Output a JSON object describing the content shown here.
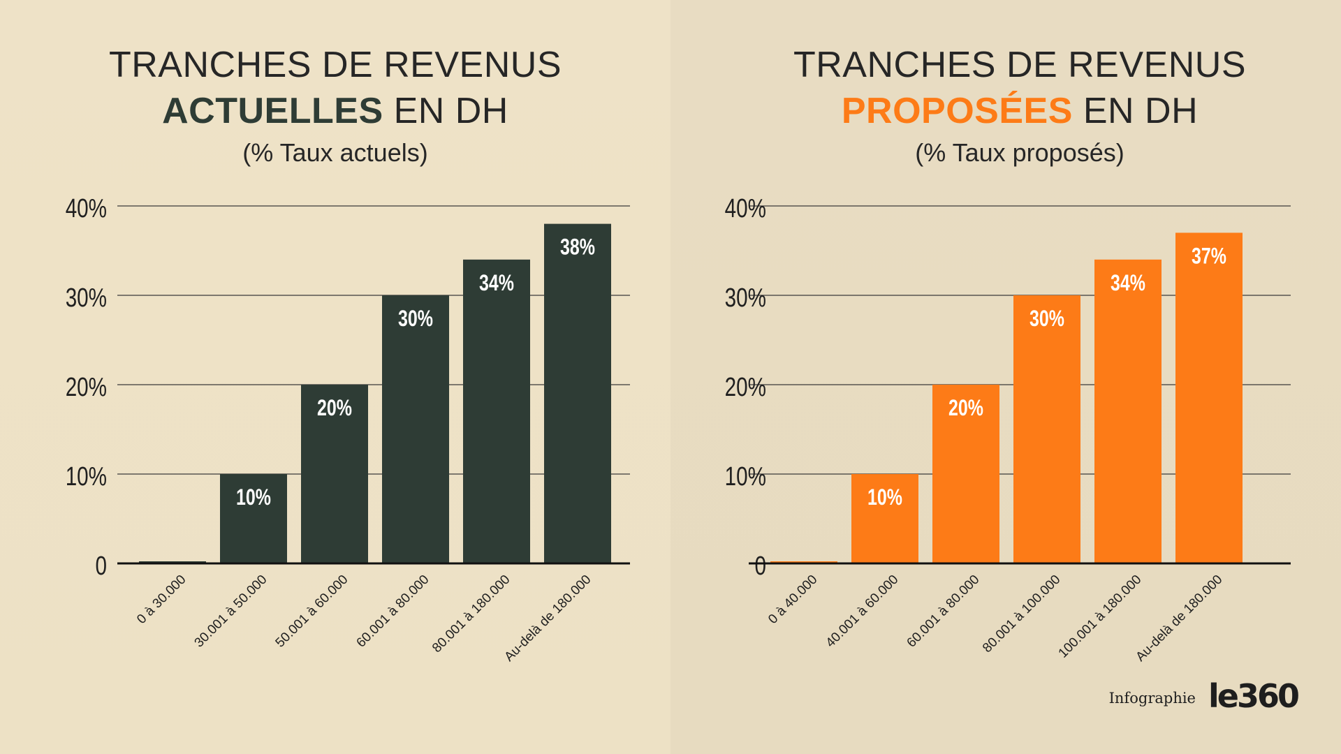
{
  "panels": [
    {
      "title_line1": "TRANCHES DE REVENUS",
      "title_highlight": "ACTUELLES",
      "title_suffix": " EN DH",
      "subtitle": "(% Taux actuels)",
      "accent_color": "#2e3c35"
    },
    {
      "title_line1": "TRANCHES DE REVENUS",
      "title_highlight": "PROPOSÉES",
      "title_suffix": " EN DH",
      "subtitle": "(% Taux proposés)",
      "accent_color": "#fd7b17"
    }
  ],
  "chart_data": [
    {
      "type": "bar",
      "title": "TRANCHES DE REVENUS ACTUELLES EN DH",
      "subtitle": "(% Taux actuels)",
      "categories": [
        "0 à 30.000",
        "30.001 à 50.000",
        "50.001 à 60.000",
        "60.001 à 80.000",
        "80.001 à 180.000",
        "Au-delà de 180.000"
      ],
      "values": [
        0,
        10,
        20,
        30,
        34,
        38
      ],
      "data_labels": [
        "",
        "10%",
        "20%",
        "30%",
        "34%",
        "38%"
      ],
      "ylim": [
        0,
        40
      ],
      "yticks": [
        0,
        10,
        20,
        30,
        40
      ],
      "ytick_labels": [
        "0",
        "10%",
        "20%",
        "30%",
        "40%"
      ],
      "grid": true,
      "color": "#2e3c35"
    },
    {
      "type": "bar",
      "title": "TRANCHES DE REVENUS PROPOSÉES EN DH",
      "subtitle": "(% Taux proposés)",
      "categories": [
        "0 à 40.000",
        "40.001 à 60.000",
        "60.001 à 80.000",
        "80.001 à 100.000",
        "100.001 à 180.000",
        "Au-delà de 180.000"
      ],
      "values": [
        0,
        10,
        20,
        30,
        34,
        37
      ],
      "data_labels": [
        "",
        "10%",
        "20%",
        "30%",
        "34%",
        "37%"
      ],
      "ylim": [
        0,
        40
      ],
      "yticks": [
        0,
        10,
        20,
        30,
        40
      ],
      "ytick_labels": [
        "0",
        "10%",
        "20%",
        "30%",
        "40%"
      ],
      "grid": true,
      "color": "#fd7b17"
    }
  ],
  "footer": {
    "prefix": "Infographie",
    "logo_text": "le360"
  }
}
